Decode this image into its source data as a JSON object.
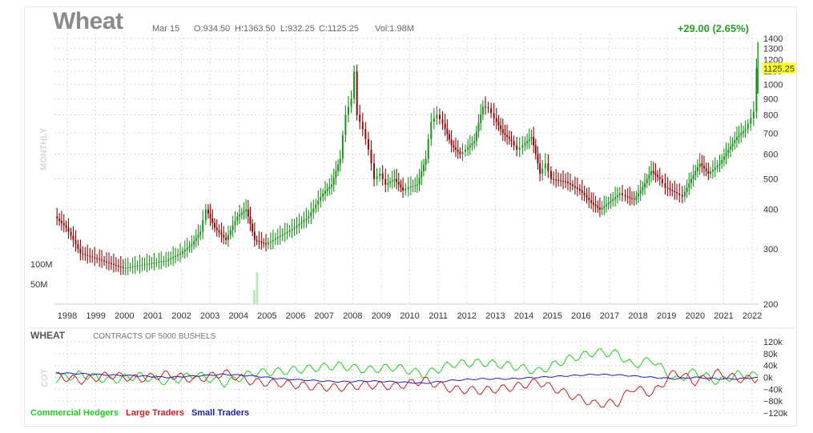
{
  "header": {
    "symbol": "Wheat",
    "date": "Mar 15",
    "open": "O:934.50",
    "high": "H:1363.50",
    "low": "L:932.25",
    "close": "C:1125.25",
    "volume": "Vol:1.98M",
    "change": "+29.00 (2.65%)"
  },
  "main": {
    "side_label": "MONTHLY",
    "last_price_label": "1125.25",
    "volume_labels": [
      "100M",
      "50M"
    ]
  },
  "cot": {
    "name": "WHEAT",
    "subtitle": "CONTRACTS OF 5000 BUSHELS",
    "side_label": "COT",
    "legend": [
      {
        "label": "Commercial Hedgers",
        "color": "#22cc22"
      },
      {
        "label": "Large Traders",
        "color": "#cc2222"
      },
      {
        "label": "Small Traders",
        "color": "#2222aa"
      }
    ]
  },
  "colors": {
    "up": "#1f8f1f",
    "down": "#8b0a0a",
    "grid": "#d9d9d9",
    "highlight": "#ffff33",
    "change": "#2a9d2a"
  },
  "chart_data": [
    {
      "type": "line",
      "title": "Wheat",
      "x_tick_labels": [
        "1998",
        "1999",
        "2000",
        "2001",
        "2002",
        "2003",
        "2004",
        "2005",
        "2006",
        "2007",
        "2008",
        "2009",
        "2010",
        "2011",
        "2012",
        "2013",
        "2014",
        "2015",
        "2016",
        "2017",
        "2018",
        "2019",
        "2020",
        "2021",
        "2022"
      ],
      "y_tick_labels": [
        "1400",
        "1300",
        "1200",
        "1100",
        "1000",
        "900",
        "800",
        "700",
        "600",
        "500",
        "400",
        "300",
        "200"
      ],
      "ylim": [
        200,
        1400
      ],
      "y_scale": "log",
      "grid": true,
      "series": [
        {
          "x": [
            1997.6,
            1998.0,
            1998.5,
            1999.0,
            1999.5,
            2000.0,
            2000.5,
            2001.0,
            2001.5,
            2002.0,
            2002.4,
            2002.7,
            2002.9,
            2003.2,
            2003.6,
            2004.0,
            2004.3,
            2004.6,
            2005.0,
            2005.5,
            2006.0,
            2006.5,
            2007.0,
            2007.3,
            2007.6,
            2007.8,
            2008.0,
            2008.1,
            2008.2,
            2008.4,
            2008.6,
            2008.8,
            2009.0,
            2009.2,
            2009.5,
            2009.8,
            2010.0,
            2010.3,
            2010.6,
            2010.8,
            2011.0,
            2011.2,
            2011.5,
            2011.8,
            2012.0,
            2012.3,
            2012.6,
            2012.8,
            2013.0,
            2013.3,
            2013.6,
            2013.8,
            2014.0,
            2014.3,
            2014.6,
            2014.8,
            2015.0,
            2015.5,
            2016.0,
            2016.4,
            2016.7,
            2017.0,
            2017.4,
            2017.6,
            2017.9,
            2018.2,
            2018.5,
            2018.8,
            2019.0,
            2019.4,
            2019.6,
            2019.9,
            2020.2,
            2020.5,
            2020.9,
            2021.2,
            2021.5,
            2021.8,
            2022.0,
            2022.1,
            2022.2
          ],
          "values": [
            380,
            350,
            290,
            280,
            270,
            260,
            265,
            270,
            275,
            290,
            310,
            340,
            400,
            350,
            320,
            380,
            400,
            320,
            310,
            330,
            350,
            380,
            450,
            480,
            580,
            800,
            900,
            1100,
            800,
            720,
            620,
            500,
            520,
            480,
            500,
            460,
            470,
            480,
            580,
            760,
            800,
            750,
            640,
            600,
            620,
            660,
            850,
            840,
            780,
            700,
            660,
            620,
            640,
            680,
            520,
            560,
            500,
            490,
            460,
            420,
            400,
            420,
            450,
            440,
            430,
            470,
            530,
            500,
            470,
            450,
            440,
            500,
            560,
            520,
            560,
            620,
            680,
            720,
            780,
            820,
            1125.25
          ]
        }
      ]
    },
    {
      "type": "bar",
      "title": "",
      "series_name": "Volume",
      "y_tick_labels": [
        "100M",
        "50M"
      ],
      "x": [
        2004.55,
        2004.65
      ],
      "values": [
        35,
        80
      ]
    },
    {
      "type": "line",
      "title": "WHEAT",
      "subtitle": "CONTRACTS OF 5000 BUSHELS",
      "y_tick_labels": [
        "120k",
        "80k",
        "40k",
        "0k",
        "−40k",
        "−80k",
        "−120k"
      ],
      "ylim": [
        -120,
        120
      ],
      "grid": true,
      "series": [
        {
          "name": "Commercial Hedgers",
          "x": [
            1997.6,
            1998.5,
            1999.5,
            2000.5,
            2001.5,
            2002.5,
            2003.5,
            2004.5,
            2005.5,
            2006.5,
            2007.5,
            2008.5,
            2009.5,
            2010.5,
            2011.5,
            2012.5,
            2013.5,
            2014.5,
            2015.5,
            2016.5,
            2017.3,
            2017.8,
            2018.5,
            2019.3,
            2020.0,
            2020.8,
            2021.5,
            2022.2
          ],
          "values": [
            -5,
            10,
            -10,
            5,
            -15,
            10,
            -20,
            15,
            20,
            30,
            40,
            25,
            35,
            10,
            45,
            50,
            40,
            20,
            60,
            85,
            80,
            40,
            60,
            -10,
            20,
            -15,
            10,
            5
          ]
        },
        {
          "name": "Large Traders",
          "x": [
            1997.6,
            1998.5,
            1999.5,
            2000.5,
            2001.5,
            2002.5,
            2003.5,
            2004.5,
            2005.5,
            2006.5,
            2007.5,
            2008.5,
            2009.5,
            2010.5,
            2011.5,
            2012.5,
            2013.5,
            2014.5,
            2015.5,
            2016.5,
            2017.3,
            2017.8,
            2018.5,
            2019.3,
            2020.0,
            2020.8,
            2021.5,
            2022.2
          ],
          "values": [
            5,
            -10,
            8,
            -5,
            10,
            -8,
            15,
            -15,
            -20,
            -30,
            -35,
            -25,
            -30,
            -10,
            -40,
            -45,
            -35,
            -15,
            -55,
            -90,
            -85,
            -35,
            -55,
            20,
            -15,
            15,
            -5,
            -5
          ]
        },
        {
          "name": "Small Traders",
          "x": [
            1997.6,
            1998.5,
            1999.5,
            2000.5,
            2001.5,
            2002.5,
            2003.5,
            2004.5,
            2005.5,
            2006.5,
            2007.5,
            2008.5,
            2009.5,
            2010.5,
            2011.5,
            2012.5,
            2013.5,
            2014.5,
            2015.5,
            2016.5,
            2017.3,
            2017.8,
            2018.5,
            2019.3,
            2020.0,
            2020.8,
            2021.5,
            2022.2
          ],
          "values": [
            15,
            12,
            8,
            5,
            0,
            5,
            10,
            5,
            -5,
            -10,
            -15,
            -12,
            -15,
            -20,
            -10,
            -5,
            -5,
            0,
            5,
            10,
            8,
            5,
            0,
            -5,
            0,
            -5,
            -5,
            0
          ]
        }
      ]
    }
  ]
}
